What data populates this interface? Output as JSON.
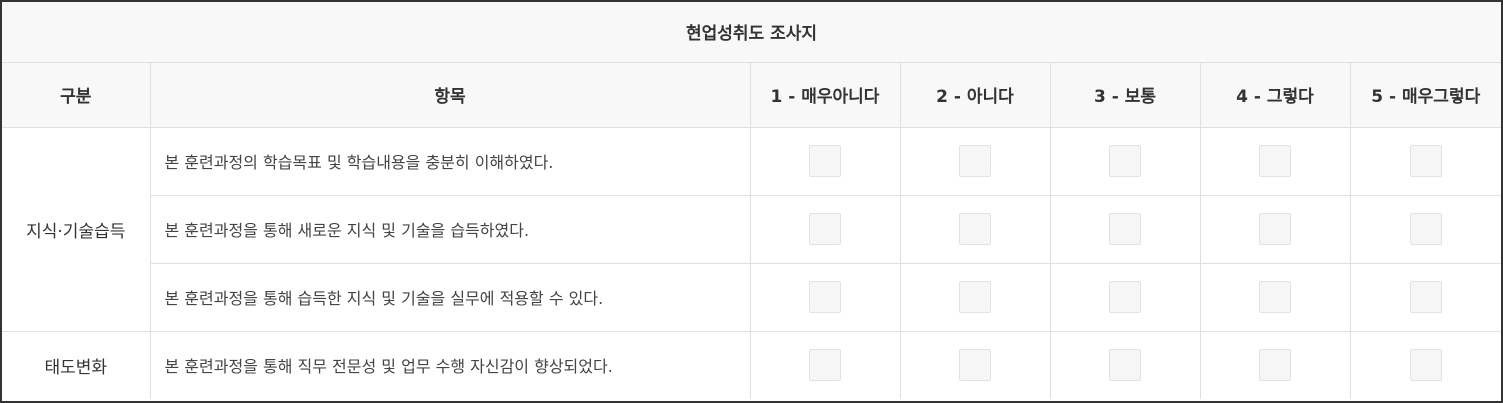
{
  "survey": {
    "title": "현업성취도 조사지",
    "headers": {
      "category": "구분",
      "item": "항목",
      "scale": [
        "1 - 매우아니다",
        "2 - 아니다",
        "3 - 보통",
        "4 - 그렇다",
        "5 - 매우그렇다"
      ]
    },
    "categories": [
      {
        "label": "지식·기술습득",
        "items": [
          "본 훈련과정의 학습목표 및 학습내용을 충분히 이해하였다.",
          "본 훈련과정을 통해 새로운 지식 및 기술을 습득하였다.",
          "본 훈련과정을 통해 습득한 지식 및 기술을 실무에 적용할 수 있다."
        ]
      },
      {
        "label": "태도변화",
        "items": [
          "본 훈련과정을 통해 직무 전문성 및 업무 수행 자신감이 향상되었다."
        ]
      }
    ]
  }
}
